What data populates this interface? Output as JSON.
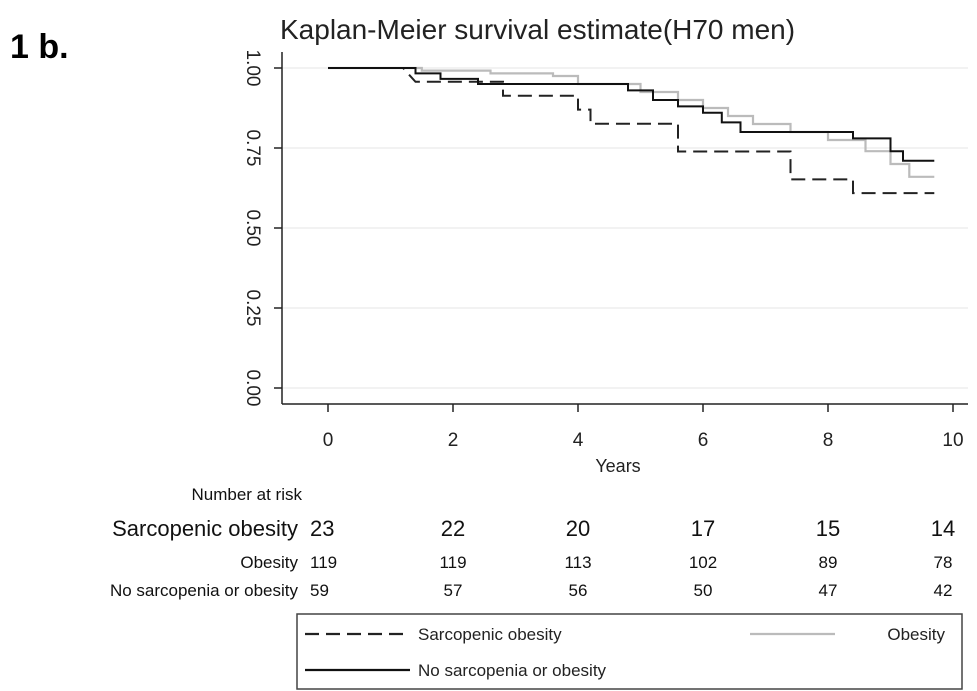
{
  "panel_label": "1 b.",
  "chart_data": {
    "type": "line",
    "title": "Kaplan-Meier survival estimate(H70 men)",
    "xlabel": "Years",
    "ylabel": "",
    "xlim": [
      0,
      10
    ],
    "ylim": [
      0,
      1
    ],
    "x_ticks": [
      0,
      2,
      4,
      6,
      8,
      10
    ],
    "x_tick_labels": [
      "0",
      "2",
      "4",
      "6",
      "8",
      "10"
    ],
    "y_ticks": [
      0,
      0.25,
      0.5,
      0.75,
      1
    ],
    "y_tick_labels": [
      "0.00",
      "0.25",
      "0.50",
      "0.75",
      "1.00"
    ],
    "grid": true,
    "step": true,
    "series": [
      {
        "name": "Sarcopenic obesity",
        "color": "#222222",
        "dash": "dashed",
        "points": [
          [
            0,
            1.0
          ],
          [
            1.2,
            1.0
          ],
          [
            1.4,
            0.957
          ],
          [
            2.8,
            0.957
          ],
          [
            2.8,
            0.913
          ],
          [
            4.0,
            0.913
          ],
          [
            4.0,
            0.87
          ],
          [
            4.2,
            0.87
          ],
          [
            4.2,
            0.826
          ],
          [
            5.6,
            0.826
          ],
          [
            5.6,
            0.739
          ],
          [
            7.4,
            0.739
          ],
          [
            7.4,
            0.652
          ],
          [
            8.4,
            0.652
          ],
          [
            8.4,
            0.609
          ],
          [
            9.7,
            0.609
          ]
        ]
      },
      {
        "name": "Obesity",
        "color": "#bbbbbb",
        "dash": "solid",
        "points": [
          [
            0,
            1.0
          ],
          [
            1.5,
            1.0
          ],
          [
            1.5,
            0.992
          ],
          [
            2.6,
            0.992
          ],
          [
            2.6,
            0.983
          ],
          [
            3.6,
            0.983
          ],
          [
            3.6,
            0.975
          ],
          [
            4.0,
            0.975
          ],
          [
            4.0,
            0.95
          ],
          [
            5.0,
            0.95
          ],
          [
            5.0,
            0.925
          ],
          [
            5.6,
            0.925
          ],
          [
            5.6,
            0.9
          ],
          [
            6.0,
            0.9
          ],
          [
            6.0,
            0.875
          ],
          [
            6.4,
            0.875
          ],
          [
            6.4,
            0.85
          ],
          [
            6.8,
            0.85
          ],
          [
            6.8,
            0.825
          ],
          [
            7.4,
            0.825
          ],
          [
            7.4,
            0.8
          ],
          [
            8.0,
            0.8
          ],
          [
            8.0,
            0.775
          ],
          [
            8.6,
            0.775
          ],
          [
            8.6,
            0.74
          ],
          [
            9.0,
            0.74
          ],
          [
            9.0,
            0.7
          ],
          [
            9.3,
            0.7
          ],
          [
            9.3,
            0.66
          ],
          [
            9.7,
            0.66
          ]
        ]
      },
      {
        "name": "No sarcopenia or obesity",
        "color": "#111111",
        "dash": "solid",
        "points": [
          [
            0,
            1.0
          ],
          [
            1.4,
            1.0
          ],
          [
            1.4,
            0.983
          ],
          [
            1.8,
            0.983
          ],
          [
            1.8,
            0.966
          ],
          [
            2.4,
            0.966
          ],
          [
            2.4,
            0.95
          ],
          [
            3.0,
            0.95
          ],
          [
            3.0,
            0.95
          ],
          [
            4.8,
            0.95
          ],
          [
            4.8,
            0.93
          ],
          [
            5.2,
            0.93
          ],
          [
            5.2,
            0.9
          ],
          [
            5.6,
            0.9
          ],
          [
            5.6,
            0.88
          ],
          [
            6.0,
            0.88
          ],
          [
            6.0,
            0.86
          ],
          [
            6.3,
            0.86
          ],
          [
            6.3,
            0.83
          ],
          [
            6.6,
            0.83
          ],
          [
            6.6,
            0.8
          ],
          [
            8.4,
            0.8
          ],
          [
            8.4,
            0.78
          ],
          [
            9.0,
            0.78
          ],
          [
            9.0,
            0.74
          ],
          [
            9.2,
            0.74
          ],
          [
            9.2,
            0.71
          ],
          [
            9.7,
            0.71
          ]
        ]
      }
    ],
    "number_at_risk": {
      "title": "Number at risk",
      "rows": [
        {
          "label": "Sarcopenic obesity",
          "values": [
            "23",
            "22",
            "20",
            "17",
            "15",
            "14"
          ]
        },
        {
          "label": "Obesity",
          "values": [
            "119",
            "119",
            "113",
            "102",
            "89",
            "78"
          ]
        },
        {
          "label": "No sarcopenia or obesity",
          "values": [
            "59",
            "57",
            "56",
            "50",
            "47",
            "42"
          ]
        }
      ]
    },
    "legend": {
      "position": "bottom",
      "entries": [
        "Sarcopenic obesity",
        "Obesity",
        "No sarcopenia or obesity"
      ]
    }
  }
}
